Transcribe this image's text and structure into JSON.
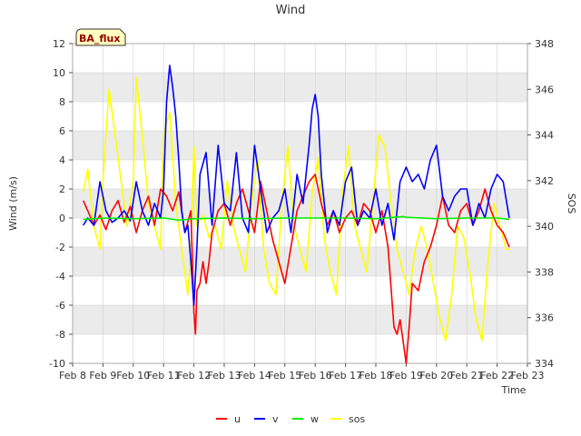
{
  "chart_data": {
    "type": "line",
    "title": "Wind",
    "badge": "BA_flux",
    "xlabel": "Time",
    "ylabel_left": "Wind (m/s)",
    "ylabel_right": "SOS",
    "x_tick_labels": [
      "Feb 8",
      "Feb 9",
      "Feb 10",
      "Feb 11",
      "Feb 12",
      "Feb 13",
      "Feb 14",
      "Feb 15",
      "Feb 16",
      "Feb 17",
      "Feb 18",
      "Feb 19",
      "Feb 20",
      "Feb 21",
      "Feb 22",
      "Feb 23"
    ],
    "xlim": [
      8,
      23
    ],
    "ylim_left": [
      -10,
      12
    ],
    "ylim_right": [
      334,
      348
    ],
    "y_ticks_left": [
      -10,
      -8,
      -6,
      -4,
      -2,
      0,
      2,
      4,
      6,
      8,
      10,
      12
    ],
    "y_ticks_right": [
      334,
      336,
      338,
      340,
      342,
      344,
      346,
      348
    ],
    "x_units": "day of February",
    "colors": {
      "u": "#ff0000",
      "v": "#0000ff",
      "w": "#00ee00",
      "sos": "#ffff00",
      "band": "#ebebeb",
      "grid": "#d0d0d0"
    },
    "series": [
      {
        "name": "u",
        "axis": "left",
        "x": [
          8.35,
          8.5,
          8.7,
          8.9,
          9.1,
          9.3,
          9.5,
          9.7,
          9.9,
          10.1,
          10.3,
          10.5,
          10.7,
          10.9,
          11.1,
          11.3,
          11.5,
          11.7,
          11.9,
          12.0,
          12.05,
          12.1,
          12.2,
          12.3,
          12.4,
          12.5,
          12.6,
          12.8,
          13.0,
          13.2,
          13.4,
          13.6,
          13.8,
          14.0,
          14.2,
          14.4,
          14.6,
          14.8,
          15.0,
          15.2,
          15.4,
          15.6,
          15.8,
          16.0,
          16.2,
          16.4,
          16.6,
          16.8,
          17.0,
          17.2,
          17.4,
          17.6,
          17.8,
          18.0,
          18.2,
          18.4,
          18.6,
          18.7,
          18.8,
          18.9,
          19.0,
          19.1,
          19.2,
          19.4,
          19.6,
          19.8,
          20.0,
          20.2,
          20.4,
          20.6,
          20.8,
          21.0,
          21.2,
          21.4,
          21.6,
          21.8,
          22.0,
          22.2,
          22.4
        ],
        "values": [
          1.2,
          0.5,
          -0.5,
          0.2,
          -0.8,
          0.5,
          1.2,
          -0.3,
          0.8,
          -1.0,
          0.5,
          1.5,
          -0.5,
          2.0,
          1.5,
          0.5,
          1.8,
          -1.0,
          0.5,
          -6.5,
          -8.0,
          -5.0,
          -4.5,
          -3.0,
          -4.5,
          -3.0,
          -1.0,
          0.5,
          1.0,
          -0.5,
          1.0,
          2.0,
          0.5,
          -1.0,
          2.5,
          0.5,
          -1.5,
          -3.0,
          -4.5,
          -2.0,
          0.5,
          1.5,
          2.5,
          3.0,
          1.0,
          -0.5,
          0.5,
          -1.0,
          0.0,
          0.5,
          -0.5,
          1.0,
          0.5,
          -1.0,
          0.5,
          -2.0,
          -7.5,
          -8.0,
          -7.0,
          -8.5,
          -10.0,
          -7.5,
          -4.5,
          -5.0,
          -3.0,
          -2.0,
          -0.5,
          1.5,
          -0.5,
          -1.0,
          0.5,
          1.0,
          -0.5,
          0.5,
          2.0,
          0.5,
          -0.5,
          -1.0,
          -2.0
        ]
      },
      {
        "name": "v",
        "axis": "left",
        "x": [
          8.35,
          8.5,
          8.7,
          8.9,
          9.1,
          9.3,
          9.5,
          9.7,
          9.9,
          10.1,
          10.3,
          10.5,
          10.7,
          10.9,
          11.0,
          11.1,
          11.2,
          11.3,
          11.4,
          11.5,
          11.6,
          11.7,
          11.8,
          11.9,
          12.0,
          12.1,
          12.2,
          12.4,
          12.6,
          12.8,
          13.0,
          13.2,
          13.4,
          13.6,
          13.8,
          14.0,
          14.2,
          14.4,
          14.6,
          14.8,
          15.0,
          15.2,
          15.4,
          15.6,
          15.8,
          15.9,
          16.0,
          16.1,
          16.2,
          16.4,
          16.6,
          16.8,
          17.0,
          17.2,
          17.4,
          17.6,
          17.8,
          18.0,
          18.2,
          18.4,
          18.6,
          18.8,
          19.0,
          19.2,
          19.4,
          19.6,
          19.8,
          20.0,
          20.2,
          20.4,
          20.6,
          20.8,
          21.0,
          21.2,
          21.4,
          21.6,
          21.8,
          22.0,
          22.2,
          22.4
        ],
        "values": [
          -0.5,
          0.0,
          -0.5,
          2.5,
          0.5,
          -0.3,
          0.0,
          0.5,
          -0.2,
          2.5,
          0.5,
          -0.5,
          1.0,
          0.0,
          2.0,
          8.0,
          10.5,
          9.0,
          7.0,
          4.0,
          0.5,
          -1.0,
          -0.5,
          -3.0,
          -6.0,
          -2.0,
          3.0,
          4.5,
          -0.5,
          5.0,
          1.0,
          0.5,
          4.5,
          0.0,
          -1.0,
          5.0,
          2.0,
          -1.0,
          0.0,
          0.5,
          2.0,
          -1.0,
          3.0,
          1.0,
          5.0,
          7.5,
          8.5,
          7.0,
          3.0,
          -1.0,
          0.5,
          -0.5,
          2.5,
          3.5,
          -0.5,
          0.5,
          0.0,
          2.0,
          -0.5,
          1.0,
          -1.5,
          2.5,
          3.5,
          2.5,
          3.0,
          2.0,
          4.0,
          5.0,
          1.5,
          0.5,
          1.5,
          2.0,
          2.0,
          -0.5,
          1.0,
          0.0,
          2.0,
          3.0,
          2.5,
          0.0
        ]
      },
      {
        "name": "w",
        "axis": "left",
        "x": [
          8.35,
          9.0,
          10.0,
          11.0,
          11.5,
          12.0,
          13.0,
          14.0,
          15.0,
          16.0,
          17.0,
          18.0,
          18.9,
          19.0,
          20.0,
          21.0,
          22.0,
          22.4
        ],
        "values": [
          -0.1,
          0.0,
          -0.05,
          0.0,
          -0.15,
          -0.05,
          0.0,
          -0.05,
          0.0,
          0.0,
          0.0,
          -0.05,
          0.1,
          0.05,
          -0.05,
          0.0,
          0.0,
          -0.1
        ]
      },
      {
        "name": "sos",
        "axis": "right",
        "x": [
          8.35,
          8.5,
          8.7,
          8.9,
          9.0,
          9.2,
          9.4,
          9.6,
          9.8,
          10.0,
          10.1,
          10.3,
          10.5,
          10.7,
          10.9,
          11.0,
          11.2,
          11.4,
          11.6,
          11.8,
          11.9,
          12.0,
          12.1,
          12.3,
          12.5,
          12.7,
          12.9,
          13.1,
          13.3,
          13.5,
          13.7,
          13.9,
          14.1,
          14.3,
          14.5,
          14.7,
          14.9,
          15.1,
          15.3,
          15.5,
          15.7,
          15.9,
          16.1,
          16.3,
          16.5,
          16.7,
          16.9,
          17.1,
          17.3,
          17.5,
          17.7,
          17.9,
          18.1,
          18.3,
          18.5,
          18.7,
          18.9,
          19.1,
          19.3,
          19.5,
          19.7,
          19.9,
          20.1,
          20.3,
          20.5,
          20.7,
          20.9,
          21.1,
          21.3,
          21.5,
          21.7,
          21.9,
          22.1,
          22.3,
          22.4
        ],
        "values": [
          341.5,
          342.5,
          340.0,
          339.0,
          342.0,
          346.0,
          344.0,
          342.0,
          340.0,
          342.0,
          346.5,
          344.0,
          341.0,
          340.0,
          339.0,
          344.0,
          345.0,
          341.0,
          339.0,
          337.0,
          339.0,
          343.5,
          340.0,
          340.5,
          339.5,
          340.0,
          339.0,
          342.0,
          340.0,
          339.0,
          338.0,
          341.0,
          343.0,
          339.0,
          337.5,
          337.0,
          341.0,
          343.5,
          340.0,
          339.0,
          338.0,
          341.5,
          343.0,
          339.5,
          338.0,
          337.0,
          341.5,
          343.5,
          340.0,
          339.0,
          338.0,
          341.0,
          344.0,
          343.5,
          341.0,
          339.0,
          338.0,
          337.0,
          339.0,
          340.0,
          339.0,
          337.5,
          336.0,
          335.0,
          337.0,
          340.0,
          339.5,
          338.0,
          336.0,
          335.0,
          338.5,
          341.0,
          340.0,
          339.0,
          339.0
        ]
      }
    ],
    "legend_position": "bottom-center"
  }
}
